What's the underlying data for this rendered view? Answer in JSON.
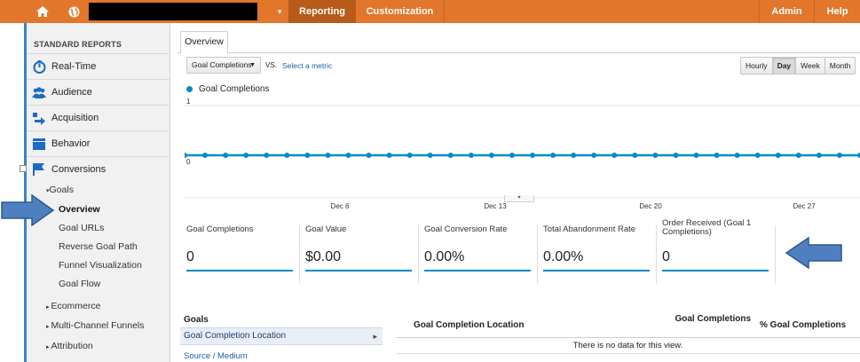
{
  "topbar": {
    "home_icon": "home-icon",
    "globe_icon": "globe-icon",
    "account_caret": "▾",
    "tabs": {
      "reporting": "Reporting",
      "customization": "Customization",
      "admin": "Admin",
      "help": "Help"
    }
  },
  "sidebar": {
    "heading": "STANDARD REPORTS",
    "items": [
      {
        "label": "Real-Time",
        "icon": "realtime-icon"
      },
      {
        "label": "Audience",
        "icon": "audience-icon"
      },
      {
        "label": "Acquisition",
        "icon": "acquisition-icon"
      },
      {
        "label": "Behavior",
        "icon": "behavior-icon"
      },
      {
        "label": "Conversions",
        "icon": "flag-icon"
      }
    ],
    "goals_label": "Goals",
    "goals_sub": [
      "Overview",
      "Goal URLs",
      "Reverse Goal Path",
      "Funnel Visualization",
      "Goal Flow"
    ],
    "more": [
      "Ecommerce",
      "Multi-Channel Funnels",
      "Attribution"
    ]
  },
  "main": {
    "tab": "Overview",
    "metric_dropdown": "Goal Completions",
    "vs": "VS.",
    "select_metric": "Select a metric",
    "periods": [
      "Hourly",
      "Day",
      "Week",
      "Month"
    ],
    "active_period": "Day",
    "legend": "Goal Completions"
  },
  "chart_data": {
    "type": "line",
    "series": [
      {
        "name": "Goal Completions",
        "values": [
          0,
          0,
          0,
          0,
          0,
          0,
          0,
          0,
          0,
          0,
          0,
          0,
          0,
          0,
          0,
          0,
          0,
          0,
          0,
          0,
          0,
          0,
          0,
          0,
          0,
          0,
          0,
          0,
          0,
          0,
          0,
          0,
          0,
          0
        ]
      }
    ],
    "y_ticks": [
      "1",
      "0"
    ],
    "ylim": [
      0,
      1
    ],
    "x_tick_labels": [
      "Dec 6",
      "Dec 13",
      "Dec 20",
      "Dec 27"
    ],
    "grid": true,
    "color": "#058dc7"
  },
  "metrics": [
    {
      "label": "Goal Completions",
      "value": "0"
    },
    {
      "label": "Goal Value",
      "value": "$0.00"
    },
    {
      "label": "Goal Conversion Rate",
      "value": "0.00%"
    },
    {
      "label": "Total Abandonment Rate",
      "value": "0.00%"
    },
    {
      "label": "Order Received (Goal 1 Completions)",
      "value": "0"
    }
  ],
  "goals_panel": {
    "heading": "Goals",
    "selected": "Goal Completion Location",
    "link": "Source / Medium"
  },
  "table": {
    "col1": "Goal Completion Location",
    "col2": "Goal Completions",
    "col3": "% Goal Completions",
    "empty": "There is no data for this view."
  }
}
